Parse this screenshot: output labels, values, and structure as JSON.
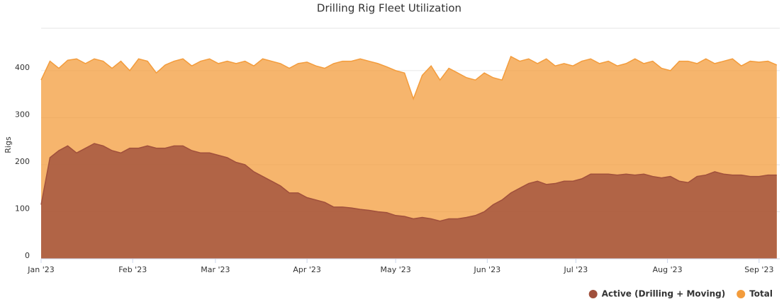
{
  "chart_data": {
    "type": "area",
    "title": "Drilling Rig Fleet Utilization",
    "y_label": "Rigs",
    "x": [
      0,
      3,
      6,
      9,
      12,
      15,
      18,
      21,
      24,
      27,
      30,
      33,
      36,
      39,
      42,
      45,
      48,
      51,
      54,
      57,
      60,
      63,
      66,
      69,
      72,
      75,
      78,
      81,
      84,
      87,
      90,
      93,
      96,
      99,
      102,
      105,
      108,
      111,
      114,
      117,
      120,
      123,
      126,
      129,
      132,
      135,
      138,
      141,
      144,
      147,
      150,
      153,
      156,
      159,
      162,
      165,
      168,
      171,
      174,
      177,
      180,
      183,
      186,
      189,
      192,
      195,
      198,
      201,
      204,
      207,
      210,
      213,
      216,
      219,
      222,
      225,
      228,
      231,
      234,
      237,
      240,
      243,
      246,
      249
    ],
    "series": [
      {
        "name": "Total",
        "color": "#f39c3c",
        "values": [
          380,
          420,
          405,
          422,
          425,
          415,
          425,
          420,
          405,
          420,
          400,
          425,
          420,
          395,
          412,
          420,
          425,
          410,
          420,
          425,
          415,
          420,
          415,
          420,
          410,
          425,
          420,
          415,
          405,
          415,
          418,
          410,
          405,
          415,
          420,
          420,
          425,
          420,
          415,
          408,
          400,
          395,
          340,
          390,
          410,
          380,
          405,
          395,
          385,
          380,
          395,
          385,
          380,
          430,
          420,
          425,
          415,
          425,
          410,
          415,
          410,
          420,
          425,
          415,
          420,
          410,
          415,
          425,
          415,
          420,
          405,
          400,
          420,
          420,
          415,
          425,
          415,
          420,
          425,
          410,
          420,
          418,
          420,
          412
        ]
      },
      {
        "name": "Active (Drilling + Moving)",
        "color": "#a0503c",
        "values": [
          115,
          215,
          230,
          240,
          225,
          235,
          245,
          240,
          230,
          225,
          235,
          235,
          240,
          235,
          235,
          240,
          240,
          230,
          225,
          225,
          220,
          215,
          205,
          200,
          185,
          175,
          165,
          155,
          140,
          140,
          130,
          125,
          120,
          110,
          110,
          108,
          105,
          103,
          100,
          98,
          92,
          90,
          85,
          88,
          85,
          80,
          85,
          85,
          88,
          92,
          100,
          115,
          125,
          140,
          150,
          160,
          165,
          158,
          160,
          165,
          165,
          170,
          180,
          180,
          180,
          178,
          180,
          178,
          180,
          175,
          172,
          175,
          165,
          162,
          175,
          178,
          185,
          180,
          178,
          178,
          175,
          175,
          178,
          178
        ]
      }
    ],
    "xlim": [
      0,
      250
    ],
    "xticks": [
      {
        "value": 0,
        "label": "Jan '23"
      },
      {
        "value": 31,
        "label": "Feb '23"
      },
      {
        "value": 59,
        "label": "Mar '23"
      },
      {
        "value": 90,
        "label": "Apr '23"
      },
      {
        "value": 120,
        "label": "May '23"
      },
      {
        "value": 151,
        "label": "Jun '23"
      },
      {
        "value": 181,
        "label": "Jul '23"
      },
      {
        "value": 212,
        "label": "Aug '23"
      },
      {
        "value": 243,
        "label": "Sep '23"
      }
    ],
    "ylim": [
      0,
      490
    ],
    "yticks": [
      0,
      100,
      200,
      300,
      400
    ],
    "grid": true,
    "legend": "bottom-right"
  }
}
